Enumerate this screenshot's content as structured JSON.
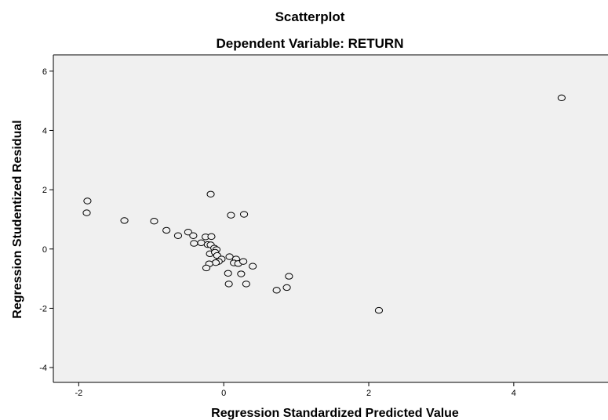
{
  "chart_data": {
    "type": "scatter",
    "title": "Scatterplot",
    "subtitle": "Dependent Variable: RETURN",
    "xlabel": "Regression Standardized Predicted Value",
    "ylabel": "Regression Studentized Residual",
    "xlim": [
      -2.35,
      5.3
    ],
    "ylim": [
      -4.5,
      6.55
    ],
    "xticks": [
      -2,
      0,
      2,
      4
    ],
    "yticks": [
      -4,
      -2,
      0,
      2,
      4,
      6
    ],
    "grid": false,
    "legend": "none",
    "colors": {
      "plot_background": "#f0f0f0",
      "marker_stroke": "#000000",
      "marker_fill": "#f0f0f0",
      "frame": "#000000"
    },
    "points": [
      {
        "x": 4.66,
        "y": 5.1
      },
      {
        "x": -1.88,
        "y": 1.62
      },
      {
        "x": -1.89,
        "y": 1.22
      },
      {
        "x": -1.37,
        "y": 0.96
      },
      {
        "x": -0.96,
        "y": 0.94
      },
      {
        "x": -0.79,
        "y": 0.63
      },
      {
        "x": -0.63,
        "y": 0.45
      },
      {
        "x": -0.49,
        "y": 0.57
      },
      {
        "x": -0.42,
        "y": 0.45
      },
      {
        "x": -0.41,
        "y": 0.19
      },
      {
        "x": -0.31,
        "y": 0.21
      },
      {
        "x": -0.25,
        "y": 0.41
      },
      {
        "x": -0.17,
        "y": 0.42
      },
      {
        "x": -0.22,
        "y": 0.15
      },
      {
        "x": -0.18,
        "y": 0.14
      },
      {
        "x": -0.13,
        "y": 0.03
      },
      {
        "x": -0.1,
        "y": -0.02
      },
      {
        "x": -0.19,
        "y": -0.16
      },
      {
        "x": -0.12,
        "y": -0.11
      },
      {
        "x": -0.09,
        "y": -0.22
      },
      {
        "x": -0.03,
        "y": -0.34
      },
      {
        "x": -0.07,
        "y": -0.42
      },
      {
        "x": -0.11,
        "y": -0.46
      },
      {
        "x": -0.2,
        "y": -0.5
      },
      {
        "x": -0.24,
        "y": -0.64
      },
      {
        "x": -0.18,
        "y": 1.85
      },
      {
        "x": 0.1,
        "y": 1.14
      },
      {
        "x": 0.28,
        "y": 1.17
      },
      {
        "x": 0.08,
        "y": -0.26
      },
      {
        "x": 0.17,
        "y": -0.34
      },
      {
        "x": 0.14,
        "y": -0.47
      },
      {
        "x": 0.2,
        "y": -0.49
      },
      {
        "x": 0.27,
        "y": -0.42
      },
      {
        "x": 0.4,
        "y": -0.58
      },
      {
        "x": 0.06,
        "y": -0.82
      },
      {
        "x": 0.24,
        "y": -0.84
      },
      {
        "x": 0.07,
        "y": -1.18
      },
      {
        "x": 0.31,
        "y": -1.18
      },
      {
        "x": 0.9,
        "y": -0.92
      },
      {
        "x": 0.87,
        "y": -1.3
      },
      {
        "x": 0.73,
        "y": -1.39
      },
      {
        "x": 2.14,
        "y": -2.07
      }
    ]
  }
}
